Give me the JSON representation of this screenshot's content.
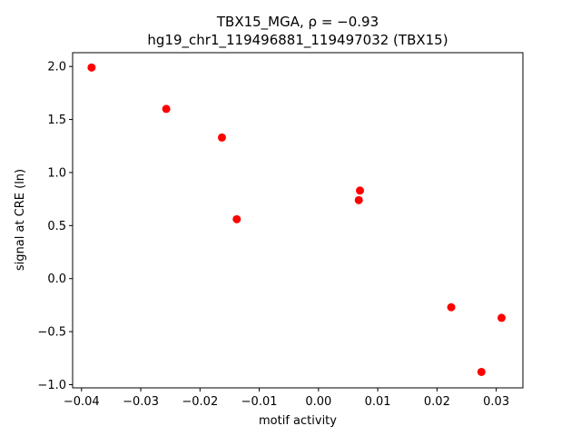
{
  "chart_data": {
    "type": "scatter",
    "title_line1": "TBX15_MGA, ρ = −0.93",
    "title_line2": "hg19_chr1_119496881_119497032 (TBX15)",
    "xlabel": "motif activity",
    "ylabel": "signal at CRE (ln)",
    "xlim": [
      -0.0415,
      0.0345
    ],
    "ylim": [
      -1.03,
      2.13
    ],
    "xticks": [
      -0.04,
      -0.03,
      -0.02,
      -0.01,
      0.0,
      0.01,
      0.02,
      0.03
    ],
    "xtick_labels": [
      "−0.04",
      "−0.03",
      "−0.02",
      "−0.01",
      "0.00",
      "0.01",
      "0.02",
      "0.03"
    ],
    "yticks": [
      -1.0,
      -0.5,
      0.0,
      0.5,
      1.0,
      1.5,
      2.0
    ],
    "ytick_labels": [
      "−1.0",
      "−0.5",
      "0.0",
      "0.5",
      "1.0",
      "1.5",
      "2.0"
    ],
    "point_color": "#ff0000",
    "grid": false,
    "points": [
      {
        "x": -0.0383,
        "y": 1.99
      },
      {
        "x": -0.0257,
        "y": 1.6
      },
      {
        "x": -0.0163,
        "y": 1.33
      },
      {
        "x": -0.0138,
        "y": 0.56
      },
      {
        "x": 0.007,
        "y": 0.83
      },
      {
        "x": 0.0068,
        "y": 0.74
      },
      {
        "x": 0.0224,
        "y": -0.27
      },
      {
        "x": 0.0309,
        "y": -0.37
      },
      {
        "x": 0.0275,
        "y": -0.88
      }
    ]
  }
}
